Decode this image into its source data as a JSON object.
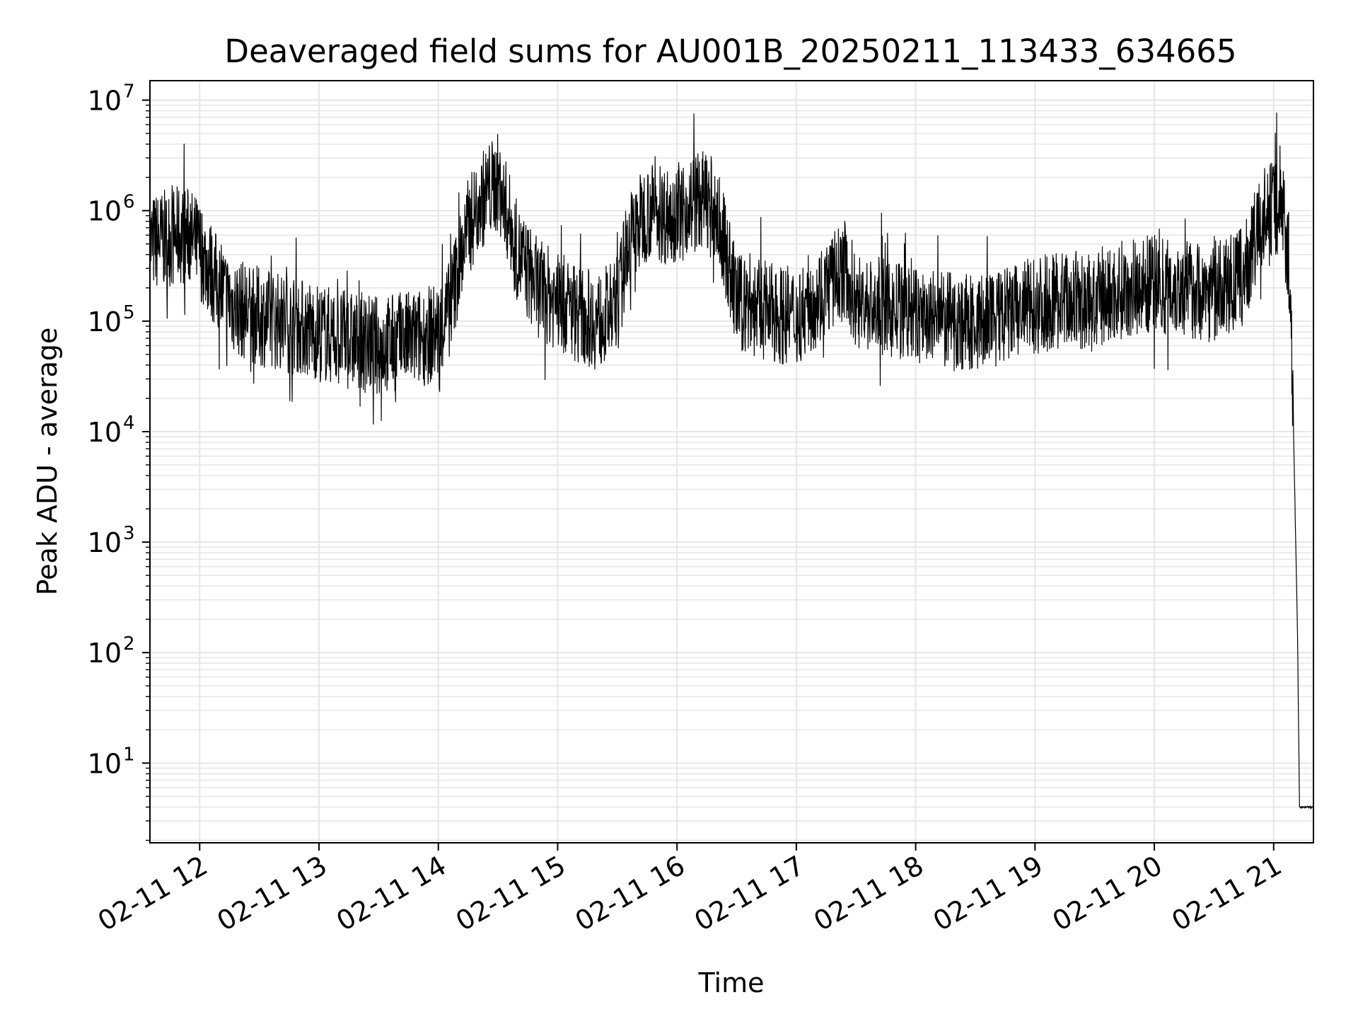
{
  "chart_data": {
    "type": "line",
    "title": "Deaveraged field sums for AU001B_20250211_113433_634665",
    "xlabel": "Time",
    "ylabel": "Peak ADU - average",
    "y_scale": "log",
    "ylim": [
      1.9,
      15000000
    ],
    "xlim": [
      "2025-02-11 11:35",
      "2025-02-11 21:20"
    ],
    "grid": true,
    "grid_color": "#e6e6e6",
    "line_color": "#000000",
    "x_ticks": [
      {
        "value": "2025-02-11 12:00",
        "label": "02-11 12"
      },
      {
        "value": "2025-02-11 13:00",
        "label": "02-11 13"
      },
      {
        "value": "2025-02-11 14:00",
        "label": "02-11 14"
      },
      {
        "value": "2025-02-11 15:00",
        "label": "02-11 15"
      },
      {
        "value": "2025-02-11 16:00",
        "label": "02-11 16"
      },
      {
        "value": "2025-02-11 17:00",
        "label": "02-11 17"
      },
      {
        "value": "2025-02-11 18:00",
        "label": "02-11 18"
      },
      {
        "value": "2025-02-11 19:00",
        "label": "02-11 19"
      },
      {
        "value": "2025-02-11 20:00",
        "label": "02-11 20"
      },
      {
        "value": "2025-02-11 21:00",
        "label": "02-11 21"
      }
    ],
    "y_ticks": [
      {
        "value": 10,
        "base": "10",
        "exp": "1"
      },
      {
        "value": 100,
        "base": "10",
        "exp": "2"
      },
      {
        "value": 1000,
        "base": "10",
        "exp": "3"
      },
      {
        "value": 10000,
        "base": "10",
        "exp": "4"
      },
      {
        "value": 100000,
        "base": "10",
        "exp": "5"
      },
      {
        "value": 1000000,
        "base": "10",
        "exp": "6"
      },
      {
        "value": 10000000,
        "base": "10",
        "exp": "7"
      }
    ],
    "series": [
      {
        "values": [
          [
            "2025-02-11 11:35",
            500000
          ],
          [
            "2025-02-11 11:40",
            540000
          ],
          [
            "2025-02-11 11:45",
            560000
          ],
          [
            "2025-02-11 11:50",
            600000
          ],
          [
            "2025-02-11 11:55",
            580000
          ],
          [
            "2025-02-11 12:00",
            450000
          ],
          [
            "2025-02-11 12:05",
            300000
          ],
          [
            "2025-02-11 12:10",
            200000
          ],
          [
            "2025-02-11 12:15",
            150000
          ],
          [
            "2025-02-11 12:20",
            130000
          ],
          [
            "2025-02-11 12:30",
            110000
          ],
          [
            "2025-02-11 12:40",
            100000
          ],
          [
            "2025-02-11 12:50",
            90000
          ],
          [
            "2025-02-11 13:00",
            80000
          ],
          [
            "2025-02-11 13:10",
            70000
          ],
          [
            "2025-02-11 13:20",
            65000
          ],
          [
            "2025-02-11 13:30",
            60000
          ],
          [
            "2025-02-11 13:40",
            65000
          ],
          [
            "2025-02-11 13:50",
            70000
          ],
          [
            "2025-02-11 14:00",
            80000
          ],
          [
            "2025-02-11 14:05",
            120000
          ],
          [
            "2025-02-11 14:10",
            300000
          ],
          [
            "2025-02-11 14:15",
            700000
          ],
          [
            "2025-02-11 14:20",
            1100000
          ],
          [
            "2025-02-11 14:25",
            1500000
          ],
          [
            "2025-02-11 14:30",
            1800000
          ],
          [
            "2025-02-11 14:35",
            900000
          ],
          [
            "2025-02-11 14:40",
            400000
          ],
          [
            "2025-02-11 14:50",
            200000
          ],
          [
            "2025-02-11 15:00",
            150000
          ],
          [
            "2025-02-11 15:10",
            120000
          ],
          [
            "2025-02-11 15:20",
            100000
          ],
          [
            "2025-02-11 15:30",
            130000
          ],
          [
            "2025-02-11 15:35",
            500000
          ],
          [
            "2025-02-11 15:45",
            1000000
          ],
          [
            "2025-02-11 15:55",
            900000
          ],
          [
            "2025-02-11 16:05",
            1100000
          ],
          [
            "2025-02-11 16:15",
            1300000
          ],
          [
            "2025-02-11 16:20",
            900000
          ],
          [
            "2025-02-11 16:25",
            400000
          ],
          [
            "2025-02-11 16:30",
            150000
          ],
          [
            "2025-02-11 16:45",
            120000
          ],
          [
            "2025-02-11 17:00",
            110000
          ],
          [
            "2025-02-11 17:15",
            200000
          ],
          [
            "2025-02-11 17:25",
            300000
          ],
          [
            "2025-02-11 17:30",
            150000
          ],
          [
            "2025-02-11 17:45",
            130000
          ],
          [
            "2025-02-11 18:00",
            110000
          ],
          [
            "2025-02-11 18:15",
            100000
          ],
          [
            "2025-02-11 18:30",
            95000
          ],
          [
            "2025-02-11 18:45",
            110000
          ],
          [
            "2025-02-11 19:00",
            140000
          ],
          [
            "2025-02-11 19:15",
            160000
          ],
          [
            "2025-02-11 19:30",
            140000
          ],
          [
            "2025-02-11 19:45",
            200000
          ],
          [
            "2025-02-11 20:00",
            220000
          ],
          [
            "2025-02-11 20:15",
            200000
          ],
          [
            "2025-02-11 20:30",
            180000
          ],
          [
            "2025-02-11 20:45",
            250000
          ],
          [
            "2025-02-11 20:50",
            500000
          ],
          [
            "2025-02-11 20:55",
            900000
          ],
          [
            "2025-02-11 21:00",
            1100000
          ],
          [
            "2025-02-11 21:05",
            1000000
          ],
          [
            "2025-02-11 21:08",
            300000
          ],
          [
            "2025-02-11 21:10",
            10000
          ],
          [
            "2025-02-11 21:12",
            150
          ],
          [
            "2025-02-11 21:13",
            4
          ],
          [
            "2025-02-11 21:20",
            4
          ]
        ]
      }
    ]
  }
}
